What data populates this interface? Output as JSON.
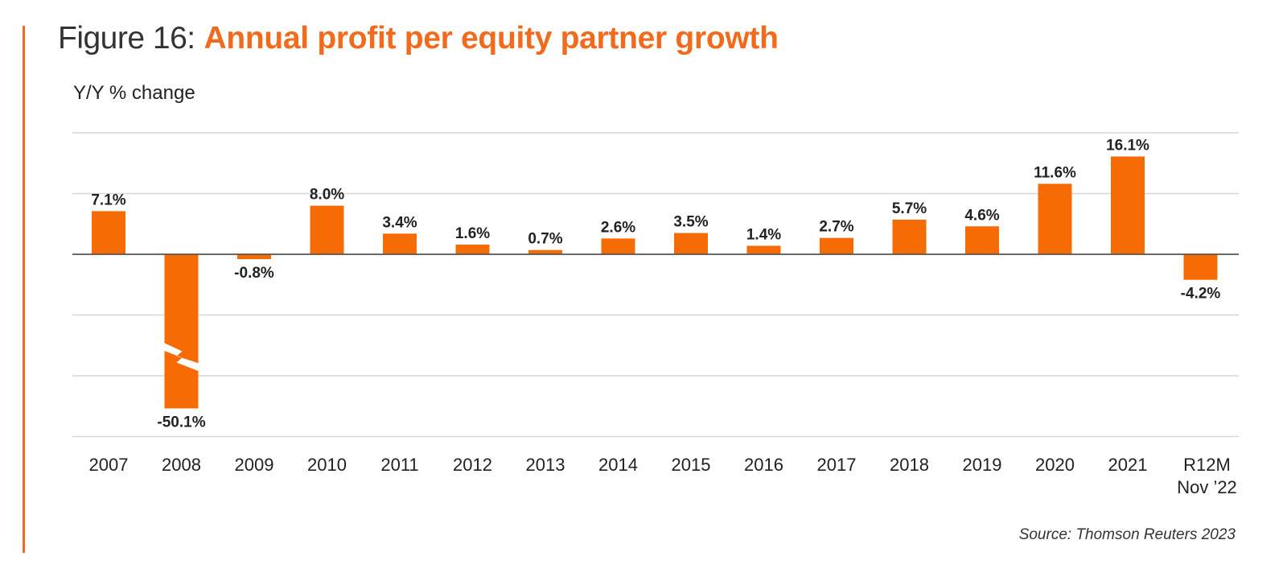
{
  "figure_prefix": "Figure 16:",
  "title": "Annual profit per equity partner growth",
  "ylabel": "Y/Y % change",
  "source": "Source: Thomson Reuters 2023",
  "colors": {
    "accent": "#f26b1d",
    "bar": "#f76b05",
    "grid": "#d7d7d7",
    "baseline": "#555555"
  },
  "chart_data": {
    "type": "bar",
    "categories": [
      "2007",
      "2008",
      "2009",
      "2010",
      "2011",
      "2012",
      "2013",
      "2014",
      "2015",
      "2016",
      "2017",
      "2018",
      "2019",
      "2020",
      "2021",
      [
        "R12M",
        "Nov ’22"
      ]
    ],
    "values": [
      7.1,
      -50.1,
      -0.8,
      8.0,
      3.4,
      1.6,
      0.7,
      2.6,
      3.5,
      1.4,
      2.7,
      5.7,
      4.6,
      11.6,
      16.1,
      -4.2
    ],
    "data_labels": [
      "7.1%",
      "-50.1%",
      "-0.8%",
      "8.0%",
      "3.4%",
      "1.6%",
      "0.7%",
      "2.6%",
      "3.5%",
      "1.4%",
      "2.7%",
      "5.7%",
      "4.6%",
      "11.6%",
      "16.1%",
      "-4.2%"
    ],
    "ylabel": "Y/Y % change",
    "ylim": [
      -30,
      20
    ],
    "axis_break_on": "2008",
    "grid": true,
    "legend": "none"
  }
}
